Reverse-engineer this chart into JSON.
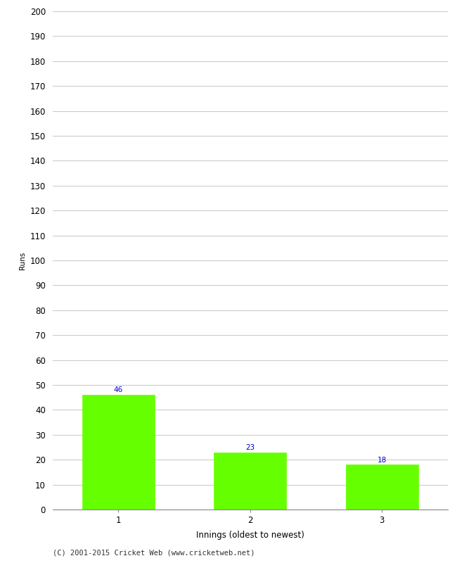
{
  "innings": [
    1,
    2,
    3
  ],
  "runs": [
    46,
    23,
    18
  ],
  "bar_color": "#66ff00",
  "bar_edge_color": "#66ff00",
  "xlabel": "Innings (oldest to newest)",
  "ylabel": "Runs",
  "ylim": [
    0,
    200
  ],
  "ytick_step": 10,
  "label_color": "#0000cc",
  "label_fontsize": 7.5,
  "axis_tick_fontsize": 8.5,
  "xlabel_fontsize": 8.5,
  "ylabel_fontsize": 7.5,
  "footer_text": "(C) 2001-2015 Cricket Web (www.cricketweb.net)",
  "footer_fontsize": 7.5,
  "background_color": "#ffffff",
  "grid_color": "#cccccc",
  "bar_width": 0.55
}
